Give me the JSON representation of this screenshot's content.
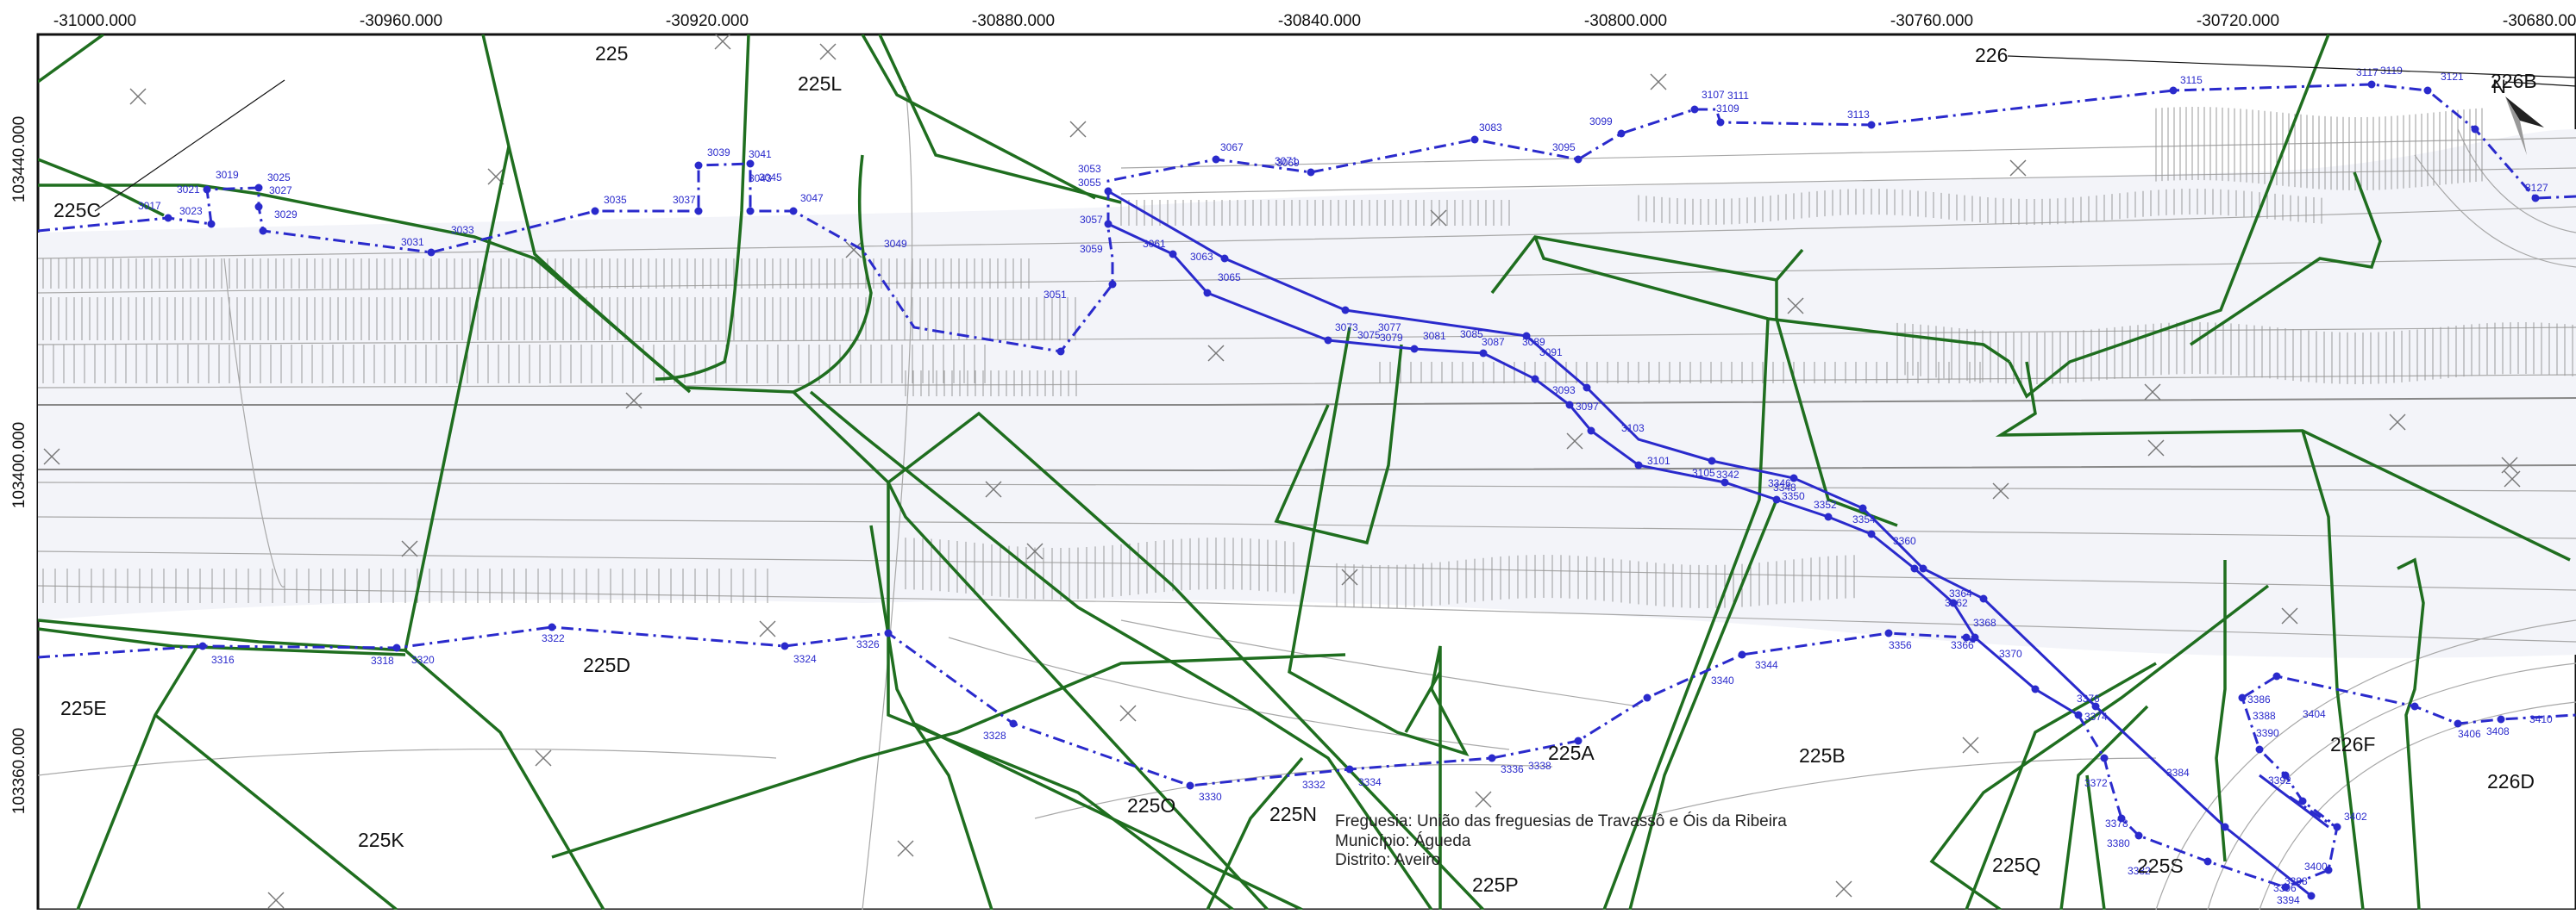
{
  "map": {
    "x_ticks": [
      "-31000.000",
      "-30960.000",
      "-30920.000",
      "-30880.000",
      "-30840.000",
      "-30800.000",
      "-30760.000",
      "-30720.000",
      "-30680.000"
    ],
    "y_ticks": [
      "103440.000",
      "103400.000",
      "103360.000"
    ],
    "parcel_labels": [
      "225",
      "225L",
      "226",
      "226B",
      "225C",
      "225D",
      "225E",
      "225K",
      "225O",
      "225N",
      "225P",
      "225A",
      "225B",
      "225Q",
      "225S",
      "226F",
      "226D"
    ],
    "point_labels": [
      "3017",
      "3019",
      "3021",
      "3023",
      "3025",
      "3027",
      "3029",
      "3031",
      "3033",
      "3035",
      "3037",
      "3039",
      "3041",
      "3043",
      "3045",
      "3047",
      "3049",
      "3051",
      "3053",
      "3055",
      "3057",
      "3059",
      "3061",
      "3063",
      "3065",
      "3067",
      "3069",
      "3071",
      "3073",
      "3075",
      "3077",
      "3079",
      "3081",
      "3083",
      "3085",
      "3087",
      "3089",
      "3091",
      "3093",
      "3095",
      "3097",
      "3099",
      "3101",
      "3103",
      "3105",
      "3107",
      "3109",
      "3111",
      "3113",
      "3115",
      "3117",
      "3119",
      "3121",
      "3127",
      "3316",
      "3318",
      "3320",
      "3322",
      "3324",
      "3326",
      "3328",
      "3330",
      "3332",
      "3334",
      "3336",
      "3338",
      "3340",
      "3342",
      "3344",
      "3346",
      "3348",
      "3350",
      "3352",
      "3354",
      "3356",
      "3360",
      "3362",
      "3364",
      "3366",
      "3368",
      "3370",
      "3372",
      "3374",
      "3376",
      "3378",
      "3380",
      "3382",
      "3384",
      "3386",
      "3388",
      "3390",
      "3392",
      "3394",
      "3396",
      "3398",
      "3400",
      "3402",
      "3404",
      "3406",
      "3408",
      "3410"
    ],
    "info": {
      "freguesia": "Freguesia: União das freguesias de Travassô e Óis da Ribeira",
      "municipio": "Município: Águeda",
      "distrito": "Distrito: Aveiro"
    },
    "north_arrow_letter": "N",
    "colors": {
      "boundary": "#1f6e1f",
      "survey": "#2a2acc",
      "terrain": "#aaaaaa",
      "road_fill": "#f3f4f9"
    }
  }
}
